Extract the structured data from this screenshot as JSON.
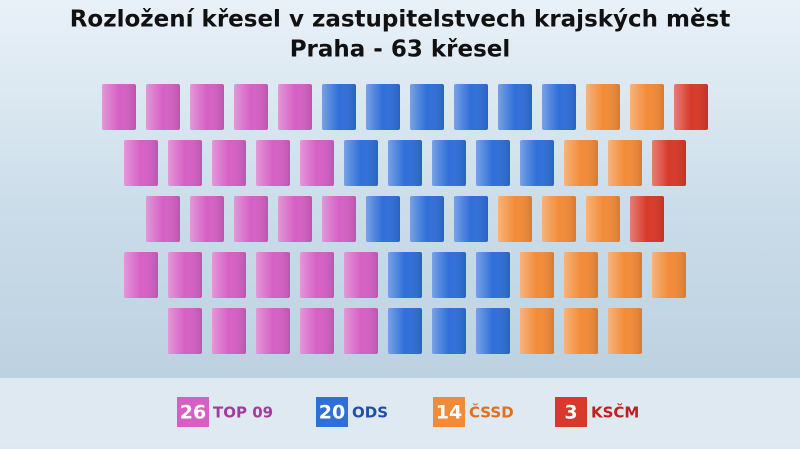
{
  "chart_data": {
    "type": "seats",
    "title": "Rozložení křesel v zastupitelstvech krajských měst",
    "subtitle": "Praha - 63 křesel",
    "series": [
      {
        "name": "TOP 09",
        "color": "#d560c4",
        "text_color": "#a23c9c",
        "seats": 26
      },
      {
        "name": "ODS",
        "color": "#2f6fd8",
        "text_color": "#1f4fa8",
        "seats": 20
      },
      {
        "name": "ČSSD",
        "color": "#f28b38",
        "text_color": "#e07020",
        "seats": 14
      },
      {
        "name": "KSČM",
        "color": "#d8392a",
        "text_color": "#c02020",
        "seats": 3
      }
    ],
    "rows": [
      [
        5,
        6,
        2,
        1
      ],
      [
        5,
        5,
        2,
        1
      ],
      [
        5,
        3,
        3,
        1
      ],
      [
        6,
        3,
        4,
        0
      ],
      [
        5,
        3,
        3,
        0
      ]
    ]
  }
}
